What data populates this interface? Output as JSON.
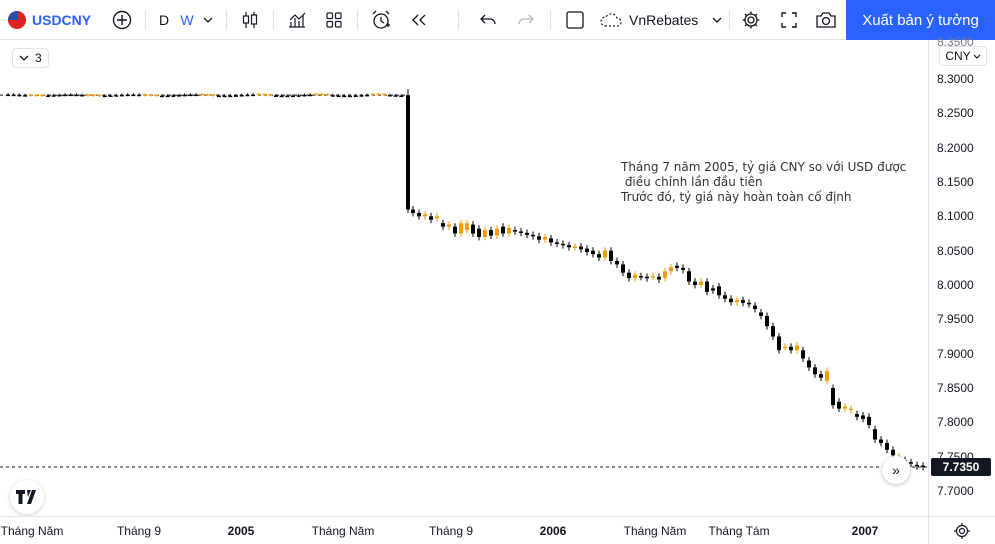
{
  "toolbar": {
    "symbol": "USDCNY",
    "interval_d": "D",
    "interval_w": "W",
    "layout_name": "VnRebates",
    "publish_label": "Xuất bản ý tưởng"
  },
  "legend": {
    "toggle_value": "3"
  },
  "annotation": "Tháng 7 năm 2005, tỷ giá CNY so với USD được\n điều chỉnh lần đầu tiên\nTrước đó, tỷ giá này hoàn toàn cố định",
  "price_scale": {
    "currency": "CNY",
    "top_label": "8.3500",
    "ticks": [
      "8.3000",
      "8.2500",
      "8.2000",
      "8.1500",
      "8.1000",
      "8.0500",
      "8.0000",
      "7.9500",
      "7.9000",
      "7.8500",
      "7.8000",
      "7.7500",
      "7.7000"
    ],
    "current_price": "7.7350"
  },
  "time_scale": {
    "labels": [
      "Tháng Năm",
      "Tháng 9",
      "2005",
      "Tháng Năm",
      "Tháng 9",
      "2006",
      "Tháng Năm",
      "Tháng Tám",
      "2007"
    ]
  },
  "chart_data": {
    "type": "candlestick",
    "ylim": [
      7.68,
      8.36
    ],
    "up_color": "#f39c12",
    "down_color": "#000000",
    "current_price": 7.735,
    "segments": [
      {
        "from_index": 0,
        "to_index": 60,
        "price": 8.2765,
        "note": "fixed"
      },
      {
        "from_index": 61,
        "to_index": 62,
        "price": 8.11
      },
      {
        "from_index": 62,
        "to_index": 85,
        "price": 8.08
      },
      {
        "from_index": 85,
        "to_index": 105,
        "price": 8.05
      },
      {
        "from_index": 105,
        "to_index": 125,
        "price": 8.01
      },
      {
        "from_index": 125,
        "to_index": 140,
        "price": 7.97
      },
      {
        "from_index": 140,
        "to_index": 155,
        "price": 7.88
      },
      {
        "from_index": 155,
        "to_index": 170,
        "price": 7.8
      },
      {
        "from_index": 170,
        "to_index": 180,
        "price": 7.74
      }
    ]
  },
  "colors": {
    "accent": "#2962ff",
    "grid": "#e0e3eb",
    "text": "#131722"
  }
}
